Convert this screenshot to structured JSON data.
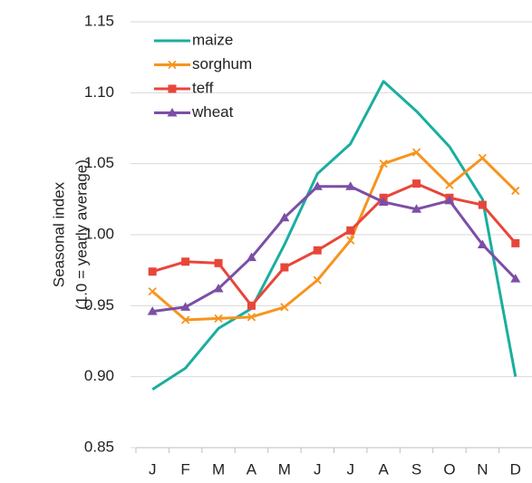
{
  "chart_data": {
    "type": "line",
    "ylabel": [
      "Seasonal index",
      "(1.0 = yearly average)"
    ],
    "categories": [
      "J",
      "F",
      "M",
      "A",
      "M",
      "J",
      "J",
      "A",
      "S",
      "O",
      "N",
      "D"
    ],
    "series": [
      {
        "name": "maize",
        "color": "#1aae9f",
        "marker": "none",
        "values": [
          0.891,
          0.906,
          0.934,
          0.948,
          0.993,
          1.043,
          1.064,
          1.108,
          1.087,
          1.062,
          1.025,
          0.9
        ]
      },
      {
        "name": "sorghum",
        "color": "#f7941d",
        "marker": "x",
        "values": [
          0.96,
          0.94,
          0.941,
          0.942,
          0.949,
          0.968,
          0.996,
          1.05,
          1.058,
          1.035,
          1.054,
          1.031
        ]
      },
      {
        "name": "teff",
        "color": "#e8463a",
        "marker": "square",
        "values": [
          0.974,
          0.981,
          0.98,
          0.95,
          0.977,
          0.989,
          1.003,
          1.026,
          1.036,
          1.026,
          1.021,
          0.994
        ]
      },
      {
        "name": "wheat",
        "color": "#7b4fa6",
        "marker": "triangle",
        "values": [
          0.946,
          0.949,
          0.962,
          0.984,
          1.012,
          1.034,
          1.034,
          1.023,
          1.018,
          1.024,
          0.993,
          0.969
        ]
      }
    ],
    "ylim": [
      0.85,
      1.15
    ],
    "yticks": [
      0.85,
      {
        "value": 0.9,
        "label": "0.90"
      },
      0.95,
      {
        "value": 1.0,
        "label": "1.00"
      },
      1.05,
      {
        "value": 1.1,
        "label": "1.10"
      },
      1.15
    ],
    "grid": true,
    "legend": "upper left"
  }
}
